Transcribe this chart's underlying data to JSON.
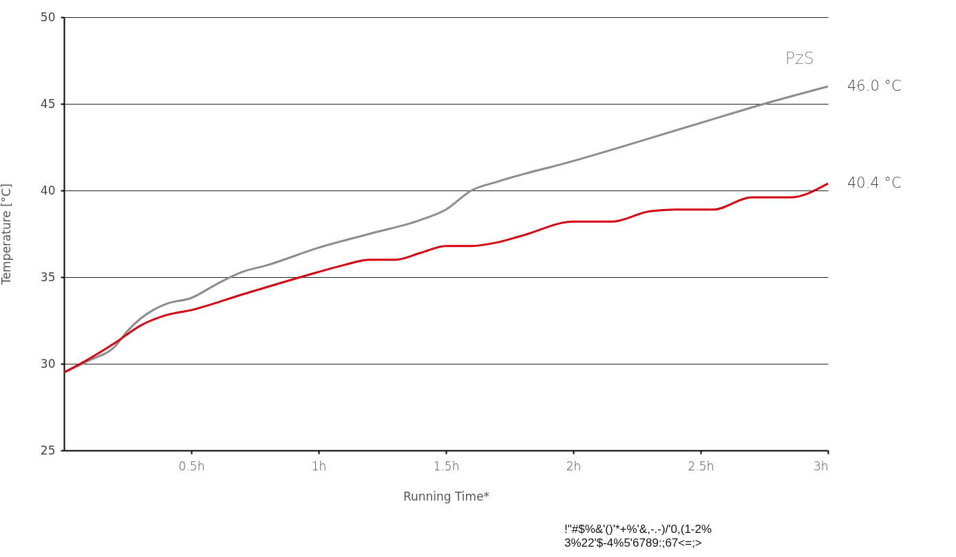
{
  "chart_data": {
    "type": "line",
    "xlabel": "Running Time*",
    "ylabel": "Temperature [°C]",
    "xlim": [
      0,
      3
    ],
    "xticks": [
      {
        "value": 0.5,
        "label": "0.5h"
      },
      {
        "value": 1,
        "label": "1h"
      },
      {
        "value": 1.5,
        "label": "1.5h"
      },
      {
        "value": 2,
        "label": "2h"
      },
      {
        "value": 2.5,
        "label": "2.5h"
      },
      {
        "value": 3,
        "label": "3h"
      }
    ],
    "ylim": [
      25,
      50
    ],
    "yticks": [
      25,
      30,
      35,
      40,
      45,
      50
    ],
    "grid": "y",
    "legend": false,
    "line_style": "solid",
    "series": [
      {
        "name": "PzS",
        "color": "#8c8c8c",
        "x": [
          0,
          0.1,
          0.2,
          0.25,
          0.3,
          0.35,
          0.4,
          0.5,
          0.6,
          0.7,
          0.8,
          1.0,
          1.2,
          1.4,
          1.5,
          1.6,
          1.7,
          2.0,
          2.5,
          2.75,
          3.0
        ],
        "values": [
          29.5,
          30.2,
          31.0,
          31.9,
          32.6,
          33.1,
          33.45,
          33.8,
          34.6,
          35.3,
          35.7,
          36.7,
          37.5,
          38.3,
          38.9,
          40.0,
          40.5,
          41.7,
          43.9,
          45.0,
          46.0
        ]
      },
      {
        "color": "#d40010",
        "x": [
          0,
          0.1,
          0.2,
          0.3,
          0.4,
          0.5,
          0.7,
          1.0,
          1.1,
          1.2,
          1.3,
          1.4,
          1.5,
          1.6,
          1.7,
          1.8,
          2.0,
          2.15,
          2.3,
          2.4,
          2.55,
          2.7,
          2.85,
          3.0
        ],
        "values": [
          29.5,
          30.3,
          31.2,
          32.2,
          32.8,
          33.1,
          34.0,
          35.3,
          35.7,
          36.0,
          36.0,
          36.4,
          36.8,
          36.8,
          37.0,
          37.4,
          38.2,
          38.2,
          38.8,
          38.9,
          38.9,
          39.6,
          39.6,
          40.4
        ]
      }
    ],
    "annotations": [
      {
        "text": "46.0 °C",
        "x": 3,
        "y": 46.0
      },
      {
        "text": "40.4 °C",
        "x": 3,
        "y": 40.4
      },
      "!\"#$%&'()'*+%'&,-.-)/'0,(1-2% 3%22'$-4%5'6789:;67<=;>"
    ]
  }
}
